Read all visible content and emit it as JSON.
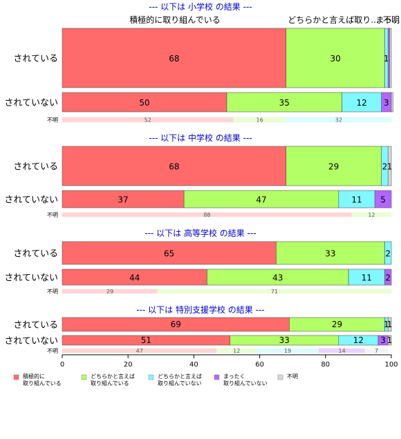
{
  "chart_data": {
    "type": "bar",
    "orientation": "horizontal",
    "stacked": true,
    "xlim": [
      0,
      100
    ],
    "x_ticks": [
      "0",
      "20",
      "40",
      "60",
      "80",
      "100"
    ],
    "top_labels": [
      "積極的に取り組んでいる",
      "どちらかと言えば取り...",
      "まっ...",
      "不明"
    ],
    "series": [
      {
        "name": "積極的に\n取り組んでいる",
        "color": "#ff6b6b"
      },
      {
        "name": "どちらかと言えば\n取り組んでいる",
        "color": "#b3ff66"
      },
      {
        "name": "どちらかと言えば\n取り組んでいない",
        "color": "#7ff8ff"
      },
      {
        "name": "まったく\n取り組んでいない",
        "color": "#b266ff"
      },
      {
        "name": "不明",
        "color": "#d9d9d9"
      }
    ],
    "panels": [
      {
        "title": "--- 以下は 小学校 の結果 ---",
        "rows": [
          {
            "label": "されている",
            "values": [
              68,
              30,
              1,
              0.5,
              0.5
            ],
            "labels": [
              "68",
              "30",
              "1",
              "",
              ""
            ]
          },
          {
            "label": "されていない",
            "values": [
              50,
              35,
              12,
              3,
              0.5
            ],
            "labels": [
              "50",
              "35",
              "12",
              "3",
              ""
            ]
          },
          {
            "label": "不明",
            "values": [
              52,
              16,
              32,
              0,
              0
            ],
            "labels": [
              "52",
              "16",
              "32",
              "",
              ""
            ]
          }
        ]
      },
      {
        "title": "--- 以下は 中学校 の結果 ---",
        "rows": [
          {
            "label": "されている",
            "values": [
              68,
              29,
              2,
              0,
              1
            ],
            "labels": [
              "68",
              "29",
              "2",
              "",
              "1"
            ]
          },
          {
            "label": "されていない",
            "values": [
              37,
              47,
              11,
              5,
              0
            ],
            "labels": [
              "37",
              "47",
              "11",
              "5",
              ""
            ]
          },
          {
            "label": "不明",
            "values": [
              88,
              12,
              0,
              0,
              0
            ],
            "labels": [
              "88",
              "12",
              "",
              "",
              ""
            ]
          }
        ]
      },
      {
        "title": "--- 以下は 高等学校 の結果 ---",
        "rows": [
          {
            "label": "されている",
            "values": [
              65,
              33,
              2,
              0,
              0
            ],
            "labels": [
              "65",
              "33",
              "2",
              "",
              ""
            ]
          },
          {
            "label": "されていない",
            "values": [
              44,
              43,
              11,
              2,
              0
            ],
            "labels": [
              "44",
              "43",
              "11",
              "2",
              ""
            ]
          },
          {
            "label": "不明",
            "values": [
              29,
              71,
              0,
              0,
              0
            ],
            "labels": [
              "29",
              "71",
              "",
              "",
              ""
            ]
          }
        ]
      },
      {
        "title": "--- 以下は 特別支援学校 の結果 ---",
        "rows": [
          {
            "label": "されている",
            "values": [
              69,
              29,
              1,
              0,
              1
            ],
            "labels": [
              "69",
              "29",
              "1",
              "",
              "1"
            ]
          },
          {
            "label": "されていない",
            "values": [
              51,
              33,
              12,
              3,
              1
            ],
            "labels": [
              "51",
              "33",
              "12",
              "3",
              "1"
            ]
          },
          {
            "label": "不明",
            "values": [
              47,
              12,
              19,
              14,
              7
            ],
            "labels": [
              "47",
              "12",
              "19",
              "14",
              "7"
            ]
          }
        ]
      }
    ]
  }
}
